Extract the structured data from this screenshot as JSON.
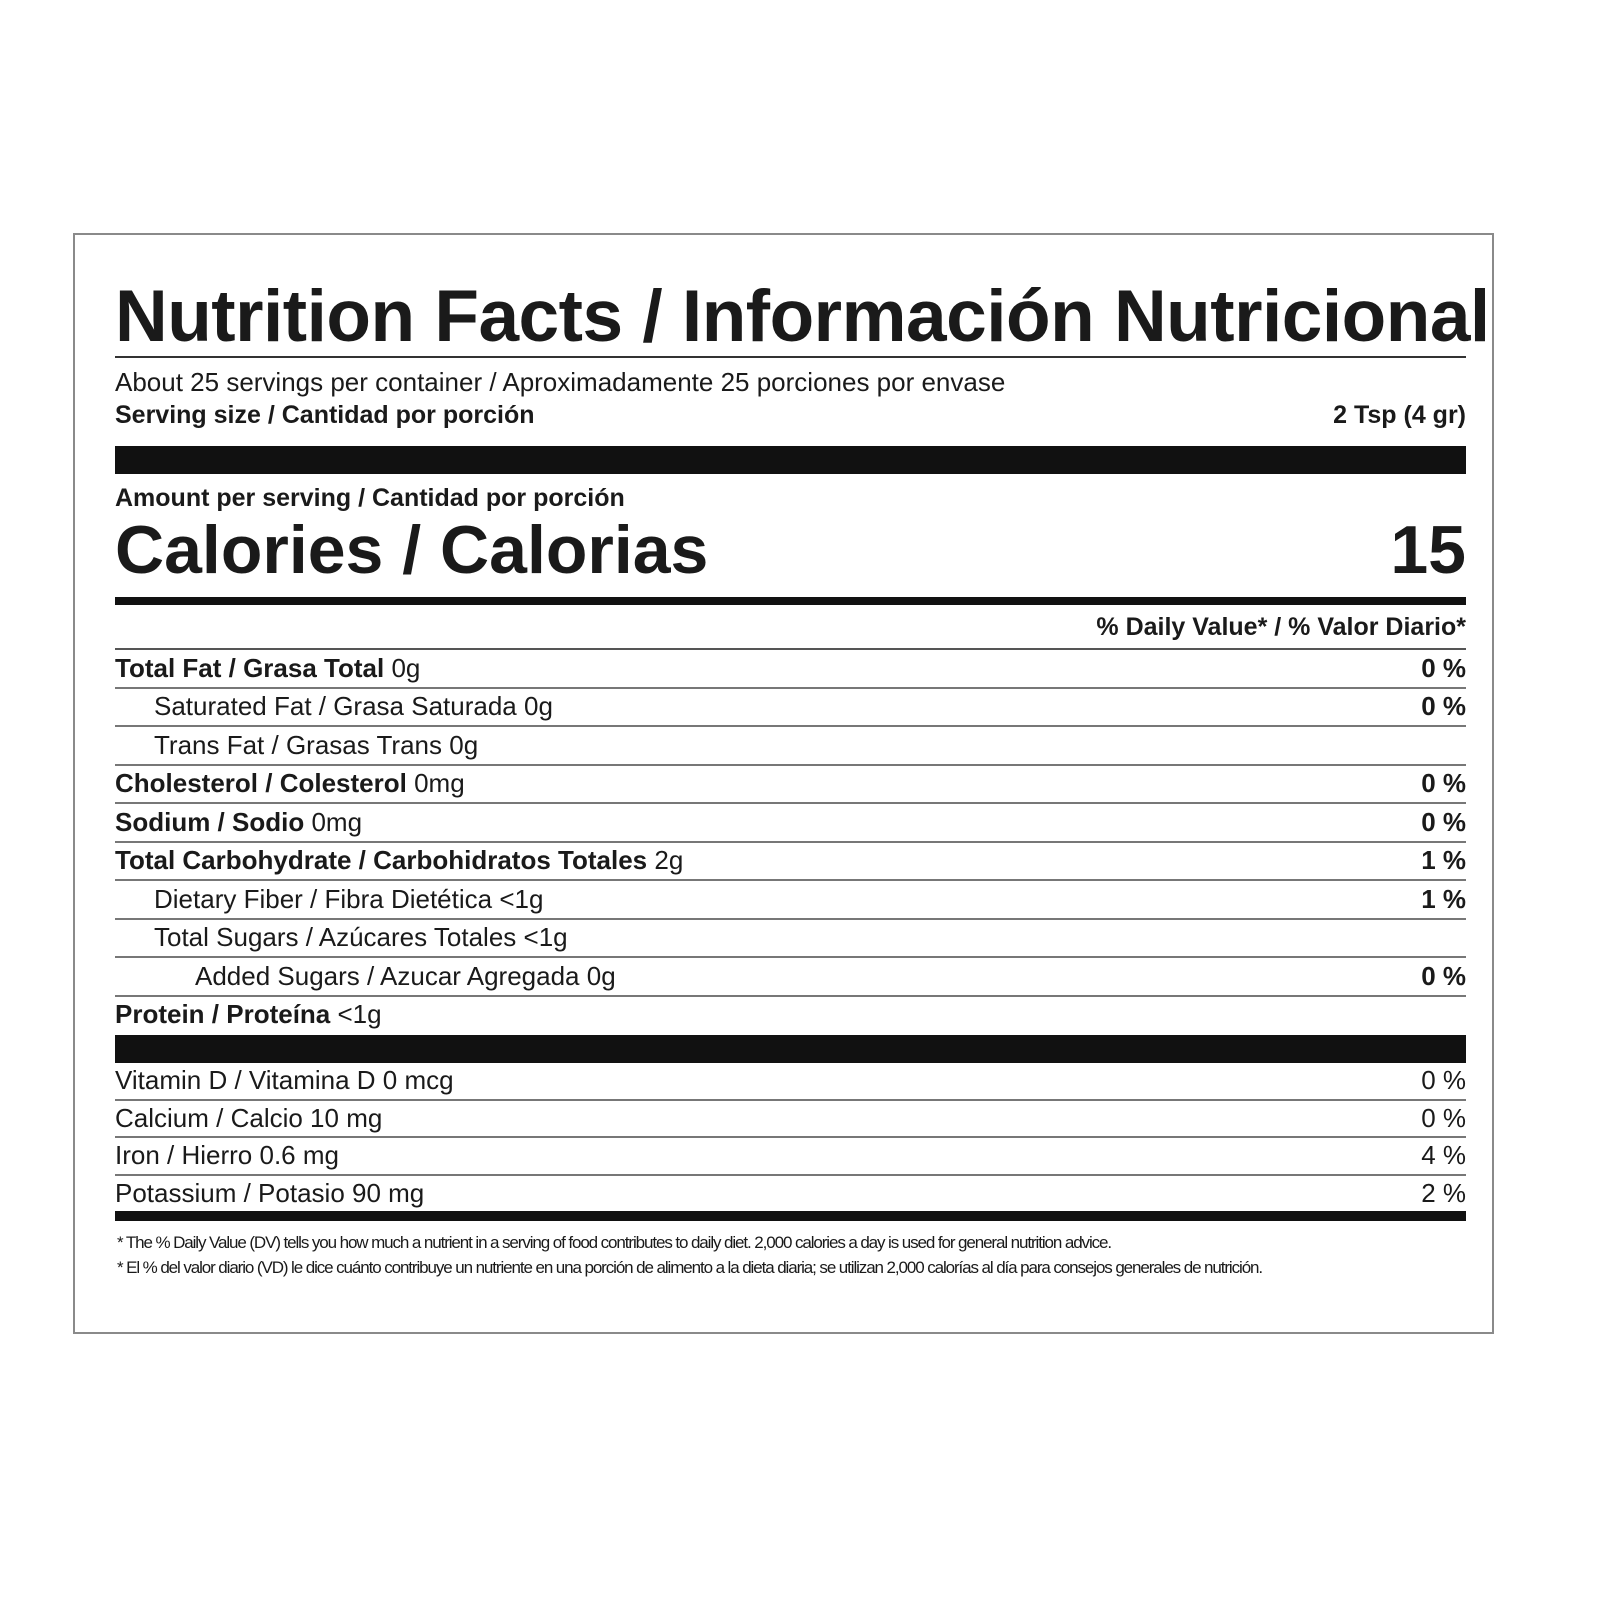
{
  "title": "Nutrition Facts / Información Nutricional",
  "servings_per_container": "About 25 servings per container / Aproximadamente 25 porciones por envase",
  "serving_size_label": "Serving size / Cantidad por porción",
  "serving_size_value": "2 Tsp (4 gr)",
  "amount_per_serving": "Amount per serving / Cantidad por porción",
  "calories_label": "Calories / Calorias",
  "calories_value": "15",
  "daily_value_header": "% Daily Value* / % Valor Diario*",
  "nutrients": [
    {
      "name": "Total Fat / Grasa Total",
      "amount": "0g",
      "dv": "0 %"
    },
    {
      "name": "Saturated Fat / Grasa Saturada",
      "amount": " 0g",
      "dv": "0 %"
    },
    {
      "name": "Trans Fat / Grasas Trans",
      "amount": "0g",
      "dv": ""
    },
    {
      "name": "Cholesterol / Colesterol",
      "amount": "0mg",
      "dv": "0 %"
    },
    {
      "name": "Sodium / Sodio",
      "amount": "0mg",
      "dv": "0 %"
    },
    {
      "name": "Total Carbohydrate / Carbohidratos Totales",
      "amount": "2g",
      "dv": "1 %"
    },
    {
      "name": "Dietary Fiber / Fibra Dietética",
      "amount": "<1g",
      "dv": "1 %"
    },
    {
      "name": "Total Sugars / Azúcares Totales",
      "amount": "<1g",
      "dv": ""
    },
    {
      "name": "Added Sugars / Azucar Agregada",
      "amount": "0g",
      "dv": "0 %"
    },
    {
      "name": "Protein / Proteína",
      "amount": "<1g",
      "dv": ""
    }
  ],
  "vitamins": [
    {
      "label": "Vitamin D / Vitamina D 0 mcg",
      "dv": "0 %"
    },
    {
      "label": "Calcium / Calcio 10 mg",
      "dv": "0 %"
    },
    {
      "label": "Iron / Hierro 0.6 mg",
      "dv": "4 %"
    },
    {
      "label": "Potassium / Potasio 90 mg",
      "dv": "2 %"
    }
  ],
  "footnote_en": "* The % Daily Value (DV) tells you how much a nutrient in a serving of food contributes to daily diet. 2,000 calories a day is used for general nutrition advice.",
  "footnote_es": "* El % del valor diario (VD) le dice cuánto contribuye un nutriente en una porción de alimento a la dieta diaria; se utilizan 2,000 calorías al día para consejos generales de nutrición."
}
